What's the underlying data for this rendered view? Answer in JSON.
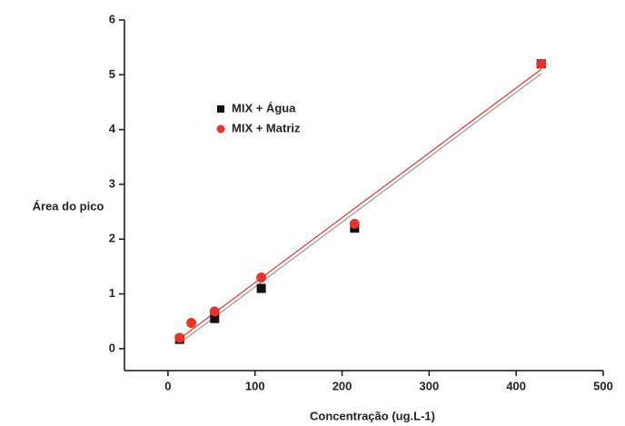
{
  "chart_data": {
    "type": "scatter",
    "x_label": "Concentração (ug.L-1)",
    "y_label": "Área do pico",
    "xlim": [
      -50,
      500
    ],
    "ylim": [
      -0.4,
      6
    ],
    "xticks": [
      0,
      100,
      200,
      300,
      400,
      500
    ],
    "yticks": [
      0,
      1,
      2,
      3,
      4,
      5,
      6
    ],
    "series": [
      {
        "name": "MIX + Água",
        "color": "#111111",
        "marker": "square",
        "x": [
          13.4,
          53.6,
          107.2,
          214.4,
          428.8
        ],
        "values": [
          0.17,
          0.55,
          1.1,
          2.2,
          5.2
        ]
      },
      {
        "name": "MIX + Matriz",
        "color": "#e8322e",
        "marker": "circle",
        "x": [
          13.4,
          26.8,
          53.6,
          107.2,
          214.4,
          428.8
        ],
        "values": [
          0.2,
          0.47,
          0.68,
          1.3,
          2.28,
          5.2
        ]
      }
    ],
    "fits": [
      {
        "color": "#999999",
        "x": [
          13.4,
          428.8
        ],
        "values": [
          0.1,
          5.02
        ]
      },
      {
        "color": "#e8322e",
        "x": [
          13.4,
          428.8
        ],
        "values": [
          0.18,
          5.1
        ]
      }
    ]
  }
}
